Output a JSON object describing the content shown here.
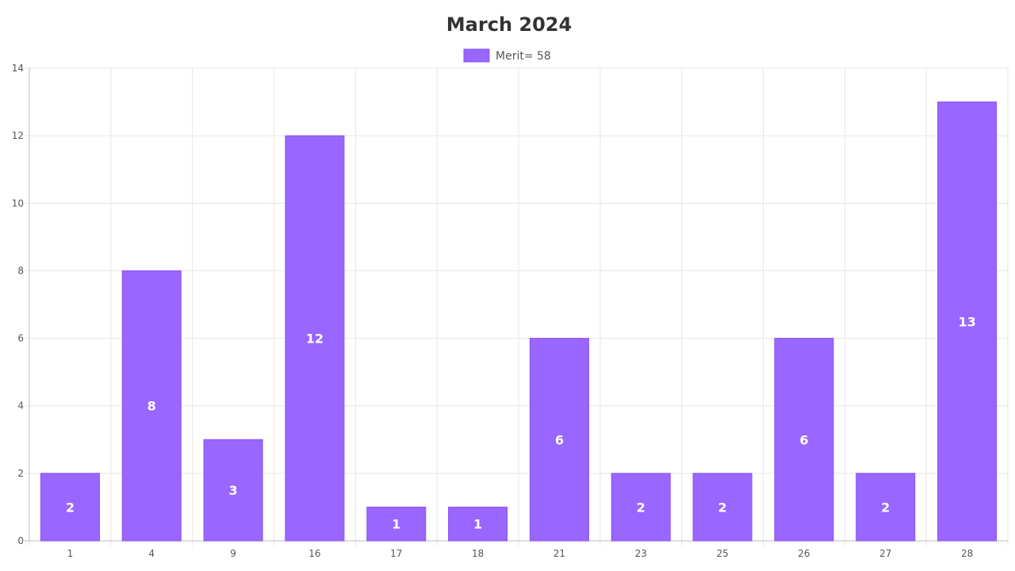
{
  "chart_data": {
    "type": "bar",
    "title": "March 2024",
    "xlabel": "",
    "ylabel": "",
    "categories": [
      "1",
      "4",
      "9",
      "16",
      "17",
      "18",
      "21",
      "23",
      "25",
      "26",
      "27",
      "28"
    ],
    "series": [
      {
        "name": "Merit= 58",
        "values": [
          2,
          8,
          3,
          12,
          1,
          1,
          6,
          2,
          2,
          6,
          2,
          13
        ],
        "color": "#9966ff",
        "border_color": "#8a55f0"
      }
    ],
    "ylim": [
      0,
      14
    ],
    "yticks": [
      "0",
      "2",
      "4",
      "6",
      "8",
      "10",
      "12",
      "14"
    ],
    "grid": true,
    "legend_position": "top",
    "data_labels": true
  }
}
